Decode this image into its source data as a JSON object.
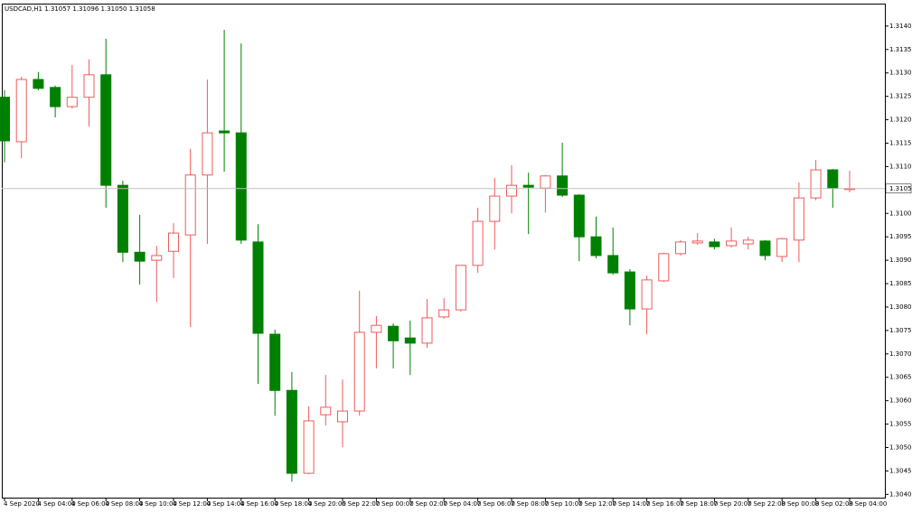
{
  "chart_data": {
    "type": "candlestick",
    "title": "USDCAD,H1  1.31057 1.31096 1.31050 1.31058",
    "categories": [
      "4 Sep 2020",
      null,
      "4 Sep 04:00",
      null,
      "4 Sep 06:00",
      null,
      "4 Sep 08:00",
      null,
      "4 Sep 10:00",
      null,
      "4 Sep 12:00",
      null,
      "4 Sep 14:00",
      null,
      "4 Sep 16:00",
      null,
      "4 Sep 18:00",
      null,
      "4 Sep 20:00",
      null,
      "6 Sep 22:00",
      null,
      "7 Sep 00:00",
      null,
      "7 Sep 02:00",
      null,
      "7 Sep 04:00",
      null,
      "7 Sep 06:00",
      null,
      "7 Sep 08:00",
      null,
      "7 Sep 10:00",
      null,
      "7 Sep 12:00",
      null,
      "7 Sep 14:00",
      null,
      "7 Sep 16:00",
      null,
      "7 Sep 18:00",
      null,
      "7 Sep 20:00",
      null,
      "7 Sep 22:00",
      null,
      "8 Sep 00:00",
      null,
      "8 Sep 02:00",
      null,
      "8 Sep 04:00"
    ],
    "open": [
      1.31253,
      1.31158,
      1.31291,
      1.31274,
      1.31233,
      1.31253,
      1.31301,
      1.31065,
      1.30922,
      1.30905,
      1.30924,
      1.30959,
      1.31087,
      1.31181,
      1.31177,
      1.30944,
      1.30747,
      1.30627,
      1.3045,
      1.30575,
      1.3056,
      1.30583,
      1.30751,
      1.30764,
      1.30739,
      1.30728,
      1.30784,
      1.30799,
      1.30894,
      1.30988,
      1.31042,
      1.31065,
      1.31059,
      1.31085,
      1.31044,
      1.30955,
      1.30915,
      1.3088,
      1.30801,
      1.30861,
      1.30919,
      1.30942,
      1.30944,
      1.30936,
      1.3094,
      1.30946,
      1.30913,
      1.30948,
      1.31038,
      1.31098,
      1.31057
    ],
    "high": [
      1.31268,
      1.31297,
      1.31307,
      1.31278,
      1.31322,
      1.31334,
      1.31378,
      1.31075,
      1.31002,
      1.30936,
      1.30984,
      1.31143,
      1.31291,
      1.31397,
      1.31368,
      1.30982,
      1.30757,
      1.30666,
      1.30593,
      1.3066,
      1.3065,
      1.3084,
      1.30786,
      1.3077,
      1.30776,
      1.30822,
      1.30824,
      1.30895,
      1.31017,
      1.31081,
      1.31108,
      1.31092,
      1.31087,
      1.31156,
      1.31046,
      1.30998,
      1.30975,
      1.30886,
      1.30872,
      1.30921,
      1.30948,
      1.30963,
      1.30951,
      1.30975,
      1.30955,
      1.30948,
      1.30953,
      1.31071,
      1.31119,
      1.311,
      1.31096
    ],
    "low": [
      1.31114,
      1.31123,
      1.31268,
      1.3121,
      1.31229,
      1.31191,
      1.31017,
      1.30901,
      1.30853,
      1.30816,
      1.30867,
      1.30762,
      1.3094,
      1.31094,
      1.3094,
      1.30641,
      1.30573,
      1.30432,
      1.30448,
      1.30552,
      1.30506,
      1.30573,
      1.30674,
      1.30674,
      1.3066,
      1.30718,
      1.3078,
      1.30795,
      1.30878,
      1.30928,
      1.31005,
      1.30961,
      1.31007,
      1.3104,
      1.30903,
      1.30909,
      1.30874,
      1.30766,
      1.30747,
      1.30859,
      1.30915,
      1.30938,
      1.30928,
      1.30932,
      1.30928,
      1.30905,
      1.30901,
      1.30901,
      1.31033,
      1.31017,
      1.3105
    ],
    "close": [
      1.3116,
      1.31291,
      1.31272,
      1.31233,
      1.31253,
      1.31301,
      1.31065,
      1.30922,
      1.30903,
      1.30915,
      1.30963,
      1.31087,
      1.31177,
      1.31177,
      1.30948,
      1.30749,
      1.30627,
      1.3045,
      1.30562,
      1.30591,
      1.30583,
      1.30751,
      1.30766,
      1.30733,
      1.30728,
      1.30782,
      1.30799,
      1.30894,
      1.30988,
      1.31042,
      1.31065,
      1.31061,
      1.31085,
      1.31044,
      1.30955,
      1.30915,
      1.30878,
      1.30801,
      1.30863,
      1.30919,
      1.30944,
      1.30946,
      1.30934,
      1.30946,
      1.30948,
      1.30915,
      1.30951,
      1.31038,
      1.31098,
      1.31059,
      1.31058
    ],
    "up_color": "#f05a5a",
    "down_color": "#008000",
    "last_price": 1.31058,
    "ylim": [
      1.30398,
      1.31453
    ],
    "yticks": [
      1.31405,
      1.31355,
      1.31305,
      1.31255,
      1.31205,
      1.31155,
      1.31105,
      1.31005,
      1.30955,
      1.30905,
      1.30855,
      1.30805,
      1.30755,
      1.30705,
      1.30655,
      1.30605,
      1.30555,
      1.30505,
      1.30455,
      1.30405
    ],
    "grid": false
  }
}
